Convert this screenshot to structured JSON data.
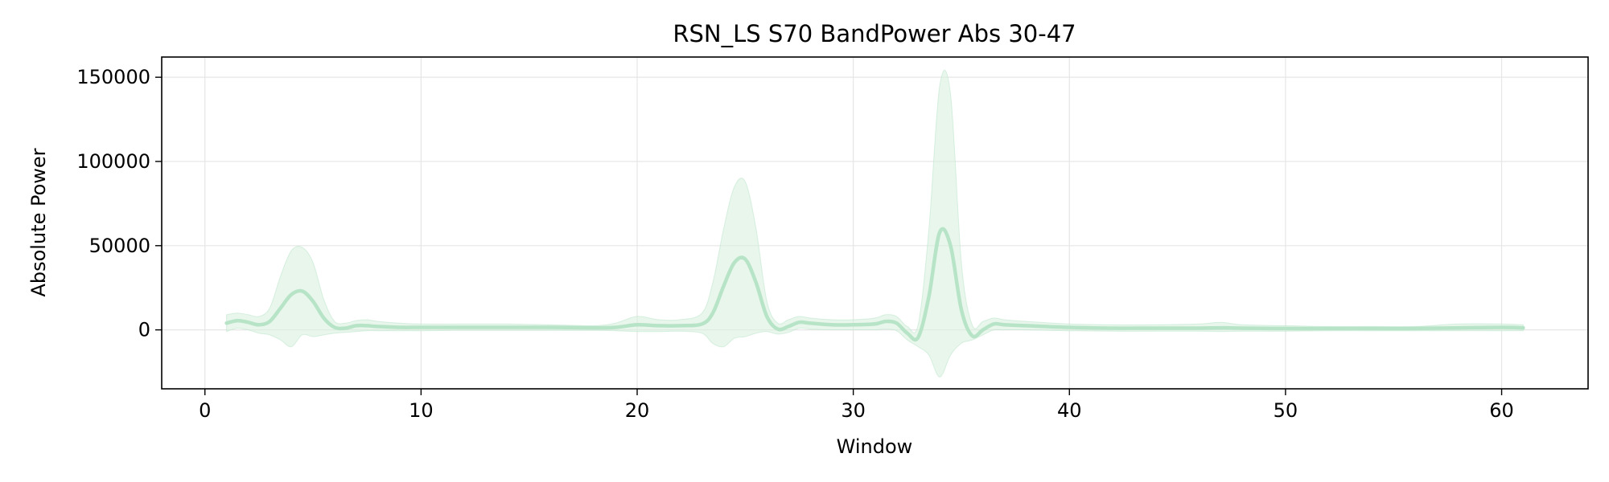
{
  "chart_data": {
    "type": "line",
    "title": "RSN_LS S70 BandPower Abs 30-47",
    "xlabel": "Window",
    "ylabel": "Absolute Power",
    "xlim": [
      -2,
      64
    ],
    "ylim": [
      -35000,
      162000
    ],
    "xticks": [
      0,
      10,
      20,
      30,
      40,
      50,
      60
    ],
    "xtick_labels": [
      "0",
      "10",
      "20",
      "30",
      "40",
      "50",
      "60"
    ],
    "yticks": [
      0,
      50000,
      100000,
      150000
    ],
    "ytick_labels": [
      "0",
      "50000",
      "100000",
      "150000"
    ],
    "grid": true,
    "colors": {
      "line": "#b7e4c7",
      "band": "#d8f0df",
      "grid": "#e6e6e6"
    },
    "series": [
      {
        "x": [
          1,
          1.5,
          2,
          2.5,
          3,
          3.5,
          4,
          4.5,
          5,
          5.5,
          6,
          6.5,
          7,
          7.5,
          8,
          9,
          10,
          12,
          14,
          16,
          18,
          19,
          20,
          21,
          22,
          23,
          23.5,
          24,
          24.5,
          25,
          25.5,
          26,
          26.5,
          27,
          27.5,
          28,
          29,
          30,
          31,
          31.5,
          32,
          32.5,
          33,
          33.5,
          34,
          34.5,
          35,
          35.5,
          36,
          36.5,
          37,
          38,
          40,
          42,
          44,
          46,
          47,
          48,
          50,
          52,
          54,
          56,
          58,
          60,
          61
        ],
        "y": [
          4000,
          5500,
          4500,
          3000,
          5000,
          13000,
          21000,
          23000,
          17000,
          7000,
          1500,
          1000,
          2500,
          2500,
          2000,
          1500,
          1500,
          1500,
          1500,
          1500,
          1200,
          1500,
          3000,
          2500,
          2500,
          3500,
          10000,
          26000,
          40000,
          42000,
          28000,
          8000,
          500,
          2000,
          4500,
          4000,
          3000,
          3000,
          3500,
          5000,
          4000,
          -2000,
          -4500,
          20000,
          58000,
          50000,
          12000,
          -3500,
          0,
          3500,
          3000,
          2500,
          1500,
          1000,
          1000,
          1000,
          1200,
          1000,
          800,
          800,
          800,
          800,
          1200,
          1500,
          1200
        ],
        "upper": [
          9000,
          10000,
          9000,
          8000,
          13000,
          32000,
          47000,
          49000,
          40000,
          18000,
          5000,
          4000,
          5500,
          6000,
          5000,
          4000,
          3500,
          3500,
          3500,
          3000,
          2500,
          4000,
          8000,
          6000,
          6000,
          10000,
          28000,
          60000,
          85000,
          88000,
          60000,
          17000,
          4000,
          6000,
          8000,
          7000,
          6000,
          6000,
          7000,
          9000,
          8000,
          2000,
          3000,
          60000,
          145000,
          140000,
          40000,
          3000,
          5000,
          7000,
          6000,
          5000,
          3500,
          3000,
          3000,
          3500,
          4500,
          3000,
          2500,
          2000,
          2000,
          2000,
          3500,
          3500,
          3000
        ],
        "lower": [
          -1000,
          1000,
          0,
          -2000,
          -3000,
          -6000,
          -10000,
          -3000,
          -4000,
          -3000,
          -2000,
          -1500,
          -1000,
          -500,
          -500,
          -500,
          -500,
          -300,
          -300,
          -300,
          -300,
          -500,
          -1000,
          -1000,
          -800,
          -2000,
          -8000,
          -10000,
          -5000,
          -4000,
          -2000,
          -1000,
          -2500,
          -1500,
          1000,
          500,
          0,
          0,
          0,
          500,
          -500,
          -6000,
          -10000,
          -15000,
          -28000,
          -15000,
          -8000,
          -6000,
          -3000,
          0,
          0,
          0,
          -500,
          -800,
          -800,
          -800,
          -1000,
          -800,
          -800,
          -500,
          -500,
          -500,
          -500,
          -500,
          -500
        ]
      }
    ]
  }
}
